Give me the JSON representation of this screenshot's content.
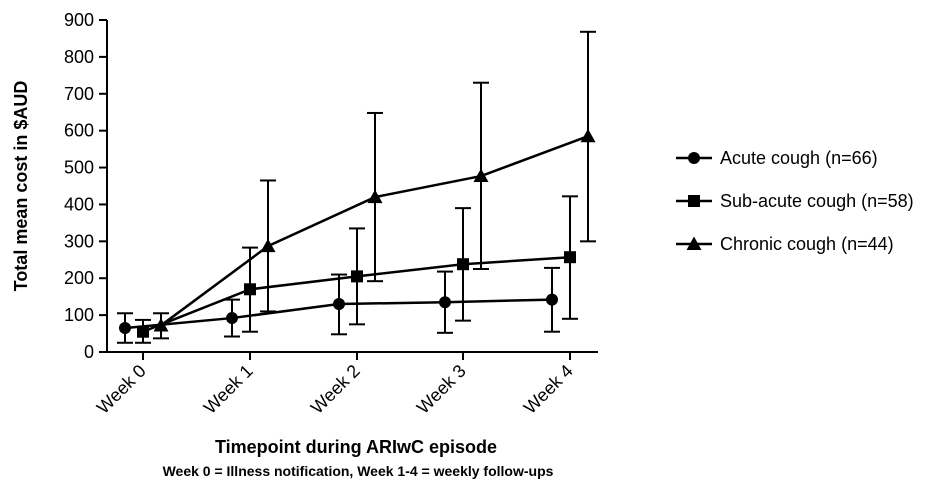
{
  "chart_data": {
    "type": "line",
    "title": "",
    "xlabel": "Timepoint during ARIwC episode",
    "xlabel_note": "Week 0 = Illness notification, Week 1-4 = weekly follow-ups",
    "ylabel": "Total mean cost in $AUD",
    "ylim": [
      0,
      900
    ],
    "yticks": [
      "0",
      "100",
      "200",
      "300",
      "400",
      "500",
      "600",
      "700",
      "800",
      "900"
    ],
    "categories": [
      "Week 0",
      "Week 1",
      "Week 2",
      "Week 3",
      "Week 4"
    ],
    "grid": false,
    "legend_position": "right",
    "series": [
      {
        "name": "Acute cough (n=66)",
        "marker": "circle",
        "values": [
          65,
          92,
          130,
          135,
          142
        ],
        "error_low": [
          25,
          42,
          48,
          52,
          55
        ],
        "error_high": [
          105,
          142,
          210,
          218,
          228
        ]
      },
      {
        "name": "Sub-acute cough (n=58)",
        "marker": "square",
        "values": [
          55,
          170,
          205,
          238,
          257
        ],
        "error_low": [
          25,
          55,
          75,
          85,
          90
        ],
        "error_high": [
          87,
          283,
          335,
          390,
          422
        ]
      },
      {
        "name": "Chronic cough (n=44)",
        "marker": "triangle",
        "values": [
          72,
          287,
          420,
          477,
          585
        ],
        "error_low": [
          37,
          110,
          192,
          225,
          300
        ],
        "error_high": [
          105,
          465,
          648,
          730,
          868
        ]
      }
    ]
  }
}
